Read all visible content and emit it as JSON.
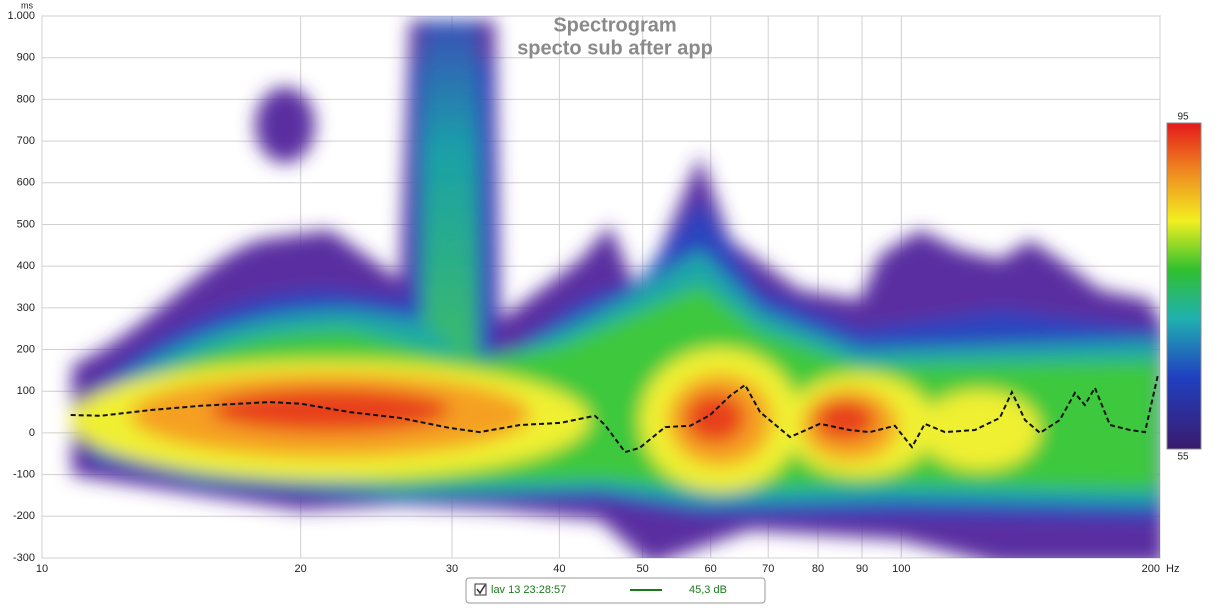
{
  "chart_data": {
    "type": "line",
    "title": "Spectrogram",
    "subtitle": "specto sub after app",
    "x_label": "Hz",
    "y_label": "ms",
    "log_x": true,
    "grid": true,
    "xlim": [
      10,
      200
    ],
    "xticks": [
      10,
      20,
      30,
      40,
      50,
      60,
      70,
      80,
      90,
      100,
      200
    ],
    "ylim": [
      -300,
      1000
    ],
    "yticks": [
      -300,
      -200,
      -100,
      0,
      100,
      200,
      300,
      400,
      500,
      600,
      700,
      800,
      900,
      {
        "value": 1000,
        "label": "1.000"
      }
    ],
    "colorbar_ticks": [
      95,
      55
    ],
    "series": [
      {
        "name": "lav 13 23:28:57",
        "color": "#1a7a1a",
        "line_color": "#111111",
        "readout": "45,3 dB",
        "x": [
          10.8,
          11.7,
          13.4,
          15.3,
          18.4,
          20.0,
          22.8,
          26.1,
          29.8,
          32.3,
          36.0,
          40.1,
          44.0,
          45.2,
          47.7,
          49.6,
          53.1,
          56.8,
          59.9,
          63.2,
          65.8,
          68.5,
          74.2,
          80.4,
          87.1,
          91.9,
          98.3,
          102.9,
          106.5,
          112.4,
          121.8,
          130.2,
          134.5,
          139.3,
          145.0,
          152.9,
          159.2,
          163.5,
          168.0,
          174.9,
          184.5,
          192.1,
          198.9
        ],
        "values": [
          43,
          41,
          55,
          65,
          74,
          70,
          50,
          36,
          12,
          2,
          19,
          24,
          41,
          19,
          -46,
          -36,
          14,
          17,
          43,
          89,
          115,
          50,
          -10,
          22,
          7,
          2,
          17,
          -34,
          22,
          2,
          7,
          36,
          98,
          31,
          0,
          31,
          96,
          67,
          108,
          19,
          7,
          2,
          139
        ]
      }
    ]
  }
}
